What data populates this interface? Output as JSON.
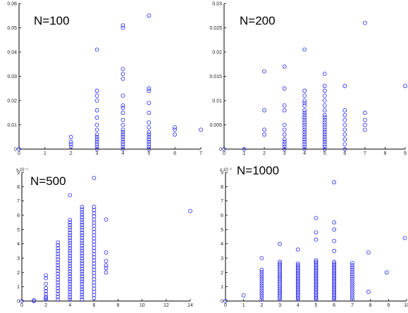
{
  "chart_data": [
    {
      "type": "scatter",
      "title": "N=100",
      "xlim": [
        0,
        7
      ],
      "ylim": [
        0,
        0.06
      ],
      "xticks": [
        "0",
        "1",
        "2",
        "3",
        "4",
        "5",
        "6",
        "7"
      ],
      "yticks": [
        "0",
        "0.01",
        "0.02",
        "0.03",
        "0.04",
        "0.05",
        "0.06"
      ],
      "yscale_label": "",
      "points": [
        [
          0,
          0
        ],
        [
          2,
          0.001
        ],
        [
          2,
          0.002
        ],
        [
          2,
          0.003
        ],
        [
          2,
          0.005
        ],
        [
          3,
          0
        ],
        [
          3,
          0.001
        ],
        [
          3,
          0.002
        ],
        [
          3,
          0.003
        ],
        [
          3,
          0.004
        ],
        [
          3,
          0.005
        ],
        [
          3,
          0.006
        ],
        [
          3,
          0.008
        ],
        [
          3,
          0.01
        ],
        [
          3,
          0.013
        ],
        [
          3,
          0.016
        ],
        [
          3,
          0.02
        ],
        [
          3,
          0.022
        ],
        [
          3,
          0.024
        ],
        [
          3,
          0.041
        ],
        [
          4,
          0
        ],
        [
          4,
          0.001
        ],
        [
          4,
          0.002
        ],
        [
          4,
          0.003
        ],
        [
          4,
          0.004
        ],
        [
          4,
          0.005
        ],
        [
          4,
          0.006
        ],
        [
          4,
          0.007
        ],
        [
          4,
          0.008
        ],
        [
          4,
          0.01
        ],
        [
          4,
          0.012
        ],
        [
          4,
          0.015
        ],
        [
          4,
          0.017
        ],
        [
          4,
          0.018
        ],
        [
          4,
          0.022
        ],
        [
          4,
          0.029
        ],
        [
          4,
          0.031
        ],
        [
          4,
          0.033
        ],
        [
          4,
          0.05
        ],
        [
          4,
          0.051
        ],
        [
          5,
          0
        ],
        [
          5,
          0.001
        ],
        [
          5,
          0.002
        ],
        [
          5,
          0.003
        ],
        [
          5,
          0.004
        ],
        [
          5,
          0.005
        ],
        [
          5,
          0.006
        ],
        [
          5,
          0.007
        ],
        [
          5,
          0.009
        ],
        [
          5,
          0.011
        ],
        [
          5,
          0.015
        ],
        [
          5,
          0.019
        ],
        [
          5,
          0.024
        ],
        [
          5,
          0.025
        ],
        [
          5,
          0.055
        ],
        [
          6,
          0.006
        ],
        [
          6,
          0.008
        ],
        [
          6,
          0.009
        ],
        [
          7,
          0.008
        ]
      ]
    },
    {
      "type": "scatter",
      "title": "N=200",
      "xlim": [
        0,
        9
      ],
      "ylim": [
        0,
        0.03
      ],
      "xticks": [
        "0",
        "1",
        "2",
        "3",
        "4",
        "5",
        "6",
        "7",
        "8",
        "9"
      ],
      "yticks": [
        "0",
        "0.005",
        "0.01",
        "0.015",
        "0.02",
        "0.025",
        "0.03"
      ],
      "yscale_label": "",
      "points": [
        [
          0,
          0
        ],
        [
          1,
          0
        ],
        [
          2,
          0.003
        ],
        [
          2,
          0.004
        ],
        [
          2,
          0.008
        ],
        [
          2,
          0.016
        ],
        [
          3,
          0
        ],
        [
          3,
          0.0005
        ],
        [
          3,
          0.001
        ],
        [
          3,
          0.0015
        ],
        [
          3,
          0.002
        ],
        [
          3,
          0.003
        ],
        [
          3,
          0.004
        ],
        [
          3,
          0.005
        ],
        [
          3,
          0.008
        ],
        [
          3,
          0.009
        ],
        [
          3,
          0.0125
        ],
        [
          3,
          0.017
        ],
        [
          4,
          0
        ],
        [
          4,
          0.0005
        ],
        [
          4,
          0.001
        ],
        [
          4,
          0.0015
        ],
        [
          4,
          0.002
        ],
        [
          4,
          0.0025
        ],
        [
          4,
          0.003
        ],
        [
          4,
          0.0035
        ],
        [
          4,
          0.004
        ],
        [
          4,
          0.0045
        ],
        [
          4,
          0.005
        ],
        [
          4,
          0.0055
        ],
        [
          4,
          0.006
        ],
        [
          4,
          0.0065
        ],
        [
          4,
          0.007
        ],
        [
          4,
          0.0075
        ],
        [
          4,
          0.008
        ],
        [
          4,
          0.009
        ],
        [
          4,
          0.0095
        ],
        [
          4,
          0.01
        ],
        [
          4,
          0.011
        ],
        [
          4,
          0.012
        ],
        [
          4,
          0.0205
        ],
        [
          5,
          0
        ],
        [
          5,
          0.0005
        ],
        [
          5,
          0.001
        ],
        [
          5,
          0.0015
        ],
        [
          5,
          0.002
        ],
        [
          5,
          0.0025
        ],
        [
          5,
          0.003
        ],
        [
          5,
          0.0035
        ],
        [
          5,
          0.004
        ],
        [
          5,
          0.0045
        ],
        [
          5,
          0.005
        ],
        [
          5,
          0.0055
        ],
        [
          5,
          0.006
        ],
        [
          5,
          0.0065
        ],
        [
          5,
          0.007
        ],
        [
          5,
          0.008
        ],
        [
          5,
          0.009
        ],
        [
          5,
          0.01
        ],
        [
          5,
          0.011
        ],
        [
          5,
          0.012
        ],
        [
          5,
          0.013
        ],
        [
          5,
          0.0155
        ],
        [
          6,
          0
        ],
        [
          6,
          0.001
        ],
        [
          6,
          0.002
        ],
        [
          6,
          0.003
        ],
        [
          6,
          0.004
        ],
        [
          6,
          0.005
        ],
        [
          6,
          0.006
        ],
        [
          6,
          0.007
        ],
        [
          6,
          0.008
        ],
        [
          6,
          0.013
        ],
        [
          7,
          0.004
        ],
        [
          7,
          0.005
        ],
        [
          7,
          0.006
        ],
        [
          7,
          0.0075
        ],
        [
          7,
          0.026
        ],
        [
          9,
          0.013
        ]
      ]
    },
    {
      "type": "scatter",
      "title": "N=500",
      "xlim": [
        0,
        14
      ],
      "ylim": [
        0,
        0.009
      ],
      "xticks": [
        "0",
        "2",
        "4",
        "6",
        "8",
        "10",
        "12",
        "14"
      ],
      "yticks": [
        "0",
        "1",
        "2",
        "3",
        "4",
        "5",
        "6",
        "7",
        "8",
        "9"
      ],
      "yscale_label": "x 10⁻³",
      "points": [
        [
          0,
          0
        ],
        [
          1,
          0
        ],
        [
          1,
          5e-05
        ],
        [
          2,
          0.0001
        ],
        [
          2,
          0.0002
        ],
        [
          2,
          0.0003
        ],
        [
          2,
          0.0005
        ],
        [
          2,
          0.0007
        ],
        [
          2,
          0.0009
        ],
        [
          2,
          0.0012
        ],
        [
          2,
          0.0016
        ],
        [
          2,
          0.0018
        ],
        [
          14,
          0.0063
        ],
        [
          7,
          0.0057
        ],
        [
          7,
          0.0034
        ],
        [
          7,
          0.0028
        ],
        [
          7,
          0.0025
        ],
        [
          7,
          0.0023
        ],
        [
          7,
          0.002
        ]
      ],
      "columns": [
        {
          "x": 3,
          "min": 0.0001,
          "max": 0.0041,
          "step": 0.0002
        },
        {
          "x": 4,
          "min": 0.0001,
          "max": 0.0057,
          "step": 0.00018,
          "extra": [
            0.0074
          ]
        },
        {
          "x": 5,
          "min": 0.0001,
          "max": 0.0066,
          "step": 0.00018
        },
        {
          "x": 6,
          "min": 0.0002,
          "max": 0.0066,
          "step": 0.00022,
          "extra": [
            0.0086
          ]
        }
      ]
    },
    {
      "type": "scatter",
      "title": "N=1000",
      "xlim": [
        0,
        10
      ],
      "ylim": [
        0,
        0.009
      ],
      "xticks": [
        "0",
        "1",
        "2",
        "3",
        "4",
        "5",
        "6",
        "7",
        "8",
        "9",
        "10"
      ],
      "yticks": [
        "0",
        "1",
        "2",
        "3",
        "4",
        "5",
        "6",
        "7",
        "8",
        "9"
      ],
      "yscale_label": "x 10⁻³",
      "points": [
        [
          0,
          0
        ],
        [
          1,
          0.0004
        ],
        [
          7.9,
          0.00065
        ],
        [
          7.9,
          0.0034
        ],
        [
          8.9,
          0.002
        ],
        [
          9.9,
          0.0044
        ],
        [
          3,
          0.004
        ],
        [
          4,
          0.0036
        ],
        [
          5,
          0.0058
        ],
        [
          5,
          0.0048
        ],
        [
          5,
          0.0043
        ],
        [
          6,
          0.0083
        ],
        [
          6,
          0.0055
        ],
        [
          6,
          0.005
        ],
        [
          6,
          0.0042
        ],
        [
          6,
          0.0035
        ]
      ],
      "columns": [
        {
          "x": 2,
          "min": 0.0001,
          "max": 0.0022,
          "step": 0.00016,
          "extra": [
            0.003
          ]
        },
        {
          "x": 3,
          "min": 0.0001,
          "max": 0.0028,
          "step": 0.00012
        },
        {
          "x": 4,
          "min": 0.0001,
          "max": 0.0027,
          "step": 0.00011
        },
        {
          "x": 5,
          "min": 0.0001,
          "max": 0.0029,
          "step": 0.00011
        },
        {
          "x": 6,
          "min": 0.0001,
          "max": 0.0028,
          "step": 0.00011
        },
        {
          "x": 7,
          "min": 0.0001,
          "max": 0.0027,
          "step": 0.00016
        }
      ]
    }
  ],
  "style": {
    "marker_color": "#2b2bf0",
    "axis_color": "#000000"
  }
}
